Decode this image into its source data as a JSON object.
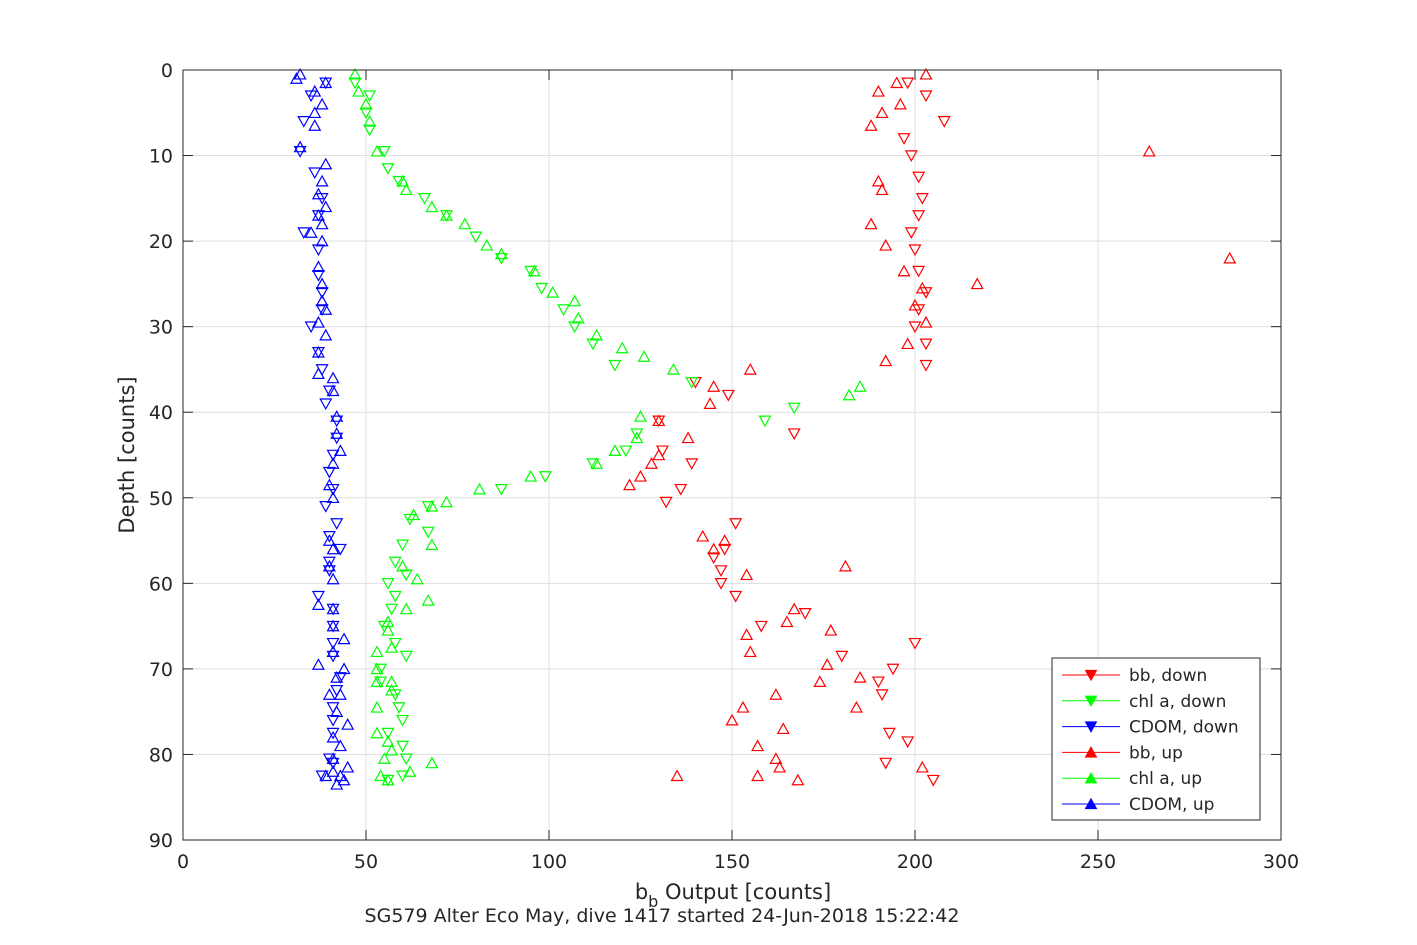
{
  "chart_data": {
    "type": "scatter",
    "xlabel_main": "b",
    "xlabel_sub": "b",
    "xlabel_rest": " Output [counts]",
    "ylabel": "Depth [counts]",
    "caption": "SG579 Alter Eco May, dive 1417 started 24-Jun-2018 15:22:42",
    "xlim": [
      0,
      300
    ],
    "ylim": [
      0,
      90
    ],
    "y_reversed": true,
    "grid": true,
    "xticks": [
      "0",
      "50",
      "100",
      "150",
      "200",
      "250",
      "300"
    ],
    "yticks": [
      "0",
      "10",
      "20",
      "30",
      "40",
      "50",
      "60",
      "70",
      "80",
      "90"
    ],
    "legend_position": "bottom-right",
    "series": [
      {
        "name": "bb, down",
        "color": "#ff0000",
        "marker": "triangle-down",
        "points": [
          [
            198,
            1.5
          ],
          [
            203,
            3
          ],
          [
            208,
            6
          ],
          [
            197,
            8
          ],
          [
            199,
            10
          ],
          [
            201,
            12.5
          ],
          [
            202,
            15
          ],
          [
            201,
            17
          ],
          [
            199,
            19
          ],
          [
            200,
            21
          ],
          [
            201,
            23.5
          ],
          [
            203,
            26
          ],
          [
            201,
            28
          ],
          [
            200,
            30
          ],
          [
            203,
            32
          ],
          [
            203,
            34.5
          ],
          [
            140,
            36.5
          ],
          [
            149,
            38
          ],
          [
            130,
            41
          ],
          [
            167,
            42.5
          ],
          [
            131,
            44.5
          ],
          [
            139,
            46
          ],
          [
            136,
            49
          ],
          [
            132,
            50.5
          ],
          [
            151,
            53
          ],
          [
            148,
            56
          ],
          [
            145,
            57
          ],
          [
            147,
            58.5
          ],
          [
            147,
            60
          ],
          [
            151,
            61.5
          ],
          [
            170,
            63.5
          ],
          [
            158,
            65
          ],
          [
            200,
            67
          ],
          [
            180,
            68.5
          ],
          [
            194,
            70
          ],
          [
            191,
            73
          ],
          [
            190,
            71.5
          ],
          [
            193,
            77.5
          ],
          [
            198,
            78.5
          ],
          [
            192,
            81
          ],
          [
            205,
            83
          ]
        ]
      },
      {
        "name": "chl a, down",
        "color": "#00ff00",
        "marker": "triangle-down",
        "points": [
          [
            47,
            1.5
          ],
          [
            51,
            3
          ],
          [
            50,
            5
          ],
          [
            51,
            7
          ],
          [
            55,
            9.5
          ],
          [
            56,
            11.5
          ],
          [
            59,
            13
          ],
          [
            66,
            15
          ],
          [
            72,
            17
          ],
          [
            80,
            19.5
          ],
          [
            87,
            22
          ],
          [
            95,
            23.5
          ],
          [
            98,
            25.5
          ],
          [
            104,
            28
          ],
          [
            107,
            30
          ],
          [
            112,
            32
          ],
          [
            118,
            34.5
          ],
          [
            139,
            36.5
          ],
          [
            167,
            39.5
          ],
          [
            159,
            41
          ],
          [
            124,
            42.5
          ],
          [
            121,
            44.5
          ],
          [
            112,
            46
          ],
          [
            99,
            47.5
          ],
          [
            87,
            49
          ],
          [
            67,
            51
          ],
          [
            62,
            52.5
          ],
          [
            67,
            54
          ],
          [
            60,
            55.5
          ],
          [
            58,
            57.5
          ],
          [
            61,
            59
          ],
          [
            56,
            60
          ],
          [
            58,
            61.5
          ],
          [
            57,
            63
          ],
          [
            55,
            65
          ],
          [
            58,
            67
          ],
          [
            61,
            68.5
          ],
          [
            54,
            70
          ],
          [
            54,
            71.5
          ],
          [
            58,
            73
          ],
          [
            59,
            74.5
          ],
          [
            60,
            76
          ],
          [
            56,
            77.5
          ],
          [
            60,
            79
          ],
          [
            61,
            80.5
          ],
          [
            60,
            82.5
          ],
          [
            56,
            83
          ]
        ]
      },
      {
        "name": "CDOM, down",
        "color": "#0000ff",
        "marker": "triangle-down",
        "points": [
          [
            39,
            1.5
          ],
          [
            35,
            3
          ],
          [
            33,
            6
          ],
          [
            32,
            9.5
          ],
          [
            36,
            12
          ],
          [
            38,
            15
          ],
          [
            37,
            17
          ],
          [
            33,
            19
          ],
          [
            37,
            21
          ],
          [
            37,
            24
          ],
          [
            38,
            26
          ],
          [
            38,
            28
          ],
          [
            35,
            30
          ],
          [
            37,
            33
          ],
          [
            38,
            35
          ],
          [
            40,
            37.5
          ],
          [
            39,
            39
          ],
          [
            42,
            41
          ],
          [
            42,
            43
          ],
          [
            41,
            45
          ],
          [
            40,
            47
          ],
          [
            41,
            49
          ],
          [
            39,
            51
          ],
          [
            42,
            53
          ],
          [
            40,
            54.5
          ],
          [
            43,
            56
          ],
          [
            40,
            57.5
          ],
          [
            40,
            58.5
          ],
          [
            37,
            61.5
          ],
          [
            41,
            63
          ],
          [
            41,
            65
          ],
          [
            41,
            67
          ],
          [
            41,
            68.5
          ],
          [
            43,
            71
          ],
          [
            42,
            72.5
          ],
          [
            41,
            74.5
          ],
          [
            41,
            76
          ],
          [
            41,
            77.5
          ],
          [
            40,
            80.5
          ],
          [
            41,
            81
          ],
          [
            38,
            82.5
          ]
        ]
      },
      {
        "name": "bb, up",
        "color": "#ff0000",
        "marker": "triangle-up",
        "points": [
          [
            203,
            0.5
          ],
          [
            195,
            1.5
          ],
          [
            190,
            2.5
          ],
          [
            196,
            4
          ],
          [
            191,
            5
          ],
          [
            188,
            6.5
          ],
          [
            190,
            13
          ],
          [
            191,
            14
          ],
          [
            188,
            18
          ],
          [
            192,
            20.5
          ],
          [
            197,
            23.5
          ],
          [
            202,
            25.5
          ],
          [
            200,
            27.5
          ],
          [
            203,
            29.5
          ],
          [
            198,
            32
          ],
          [
            192,
            34
          ],
          [
            264,
            9.5
          ],
          [
            286,
            22
          ],
          [
            217,
            25
          ],
          [
            155,
            35
          ],
          [
            145,
            37
          ],
          [
            144,
            39
          ],
          [
            130,
            41
          ],
          [
            138,
            43
          ],
          [
            128,
            46
          ],
          [
            125,
            47.5
          ],
          [
            122,
            48.5
          ],
          [
            130,
            45
          ],
          [
            142,
            54.5
          ],
          [
            148,
            55
          ],
          [
            145,
            56
          ],
          [
            154,
            59
          ],
          [
            167,
            63
          ],
          [
            154,
            66
          ],
          [
            155,
            68
          ],
          [
            181,
            58
          ],
          [
            165,
            64.5
          ],
          [
            177,
            65.5
          ],
          [
            176,
            69.5
          ],
          [
            185,
            71
          ],
          [
            174,
            71.5
          ],
          [
            162,
            73
          ],
          [
            153,
            74.5
          ],
          [
            150,
            76
          ],
          [
            164,
            77
          ],
          [
            184,
            74.5
          ],
          [
            157,
            79
          ],
          [
            162,
            80.5
          ],
          [
            163,
            81.5
          ],
          [
            135,
            82.5
          ],
          [
            157,
            82.5
          ],
          [
            168,
            83
          ],
          [
            202,
            81.5
          ]
        ]
      },
      {
        "name": "chl a, up",
        "color": "#00ff00",
        "marker": "triangle-up",
        "points": [
          [
            47,
            0.5
          ],
          [
            48,
            2.5
          ],
          [
            50,
            4
          ],
          [
            51,
            6
          ],
          [
            53,
            9.5
          ],
          [
            60,
            13
          ],
          [
            61,
            14
          ],
          [
            68,
            16
          ],
          [
            72,
            17
          ],
          [
            77,
            18
          ],
          [
            83,
            20.5
          ],
          [
            87,
            21.5
          ],
          [
            96,
            23.5
          ],
          [
            101,
            26
          ],
          [
            107,
            27
          ],
          [
            108,
            29
          ],
          [
            113,
            31
          ],
          [
            120,
            32.5
          ],
          [
            126,
            33.5
          ],
          [
            134,
            35
          ],
          [
            185,
            37
          ],
          [
            182,
            38
          ],
          [
            125,
            40.5
          ],
          [
            124,
            43
          ],
          [
            118,
            44.5
          ],
          [
            113,
            46
          ],
          [
            95,
            47.5
          ],
          [
            81,
            49
          ],
          [
            72,
            50.5
          ],
          [
            68,
            51
          ],
          [
            63,
            52
          ],
          [
            68,
            55.5
          ],
          [
            60,
            58
          ],
          [
            64,
            59.5
          ],
          [
            67,
            62
          ],
          [
            61,
            63
          ],
          [
            56,
            64.5
          ],
          [
            56,
            65.5
          ],
          [
            57,
            67.5
          ],
          [
            53,
            68
          ],
          [
            53,
            70
          ],
          [
            53,
            71.5
          ],
          [
            57,
            71.5
          ],
          [
            57,
            72.5
          ],
          [
            53,
            74.5
          ],
          [
            53,
            77.5
          ],
          [
            56,
            78.5
          ],
          [
            57,
            79.5
          ],
          [
            55,
            80.5
          ],
          [
            68,
            81
          ],
          [
            62,
            82
          ],
          [
            54,
            82.5
          ],
          [
            56,
            83
          ]
        ]
      },
      {
        "name": "CDOM, up",
        "color": "#0000ff",
        "marker": "triangle-up",
        "points": [
          [
            32,
            0.5
          ],
          [
            31,
            1
          ],
          [
            39,
            1.5
          ],
          [
            36,
            2.5
          ],
          [
            38,
            4
          ],
          [
            36,
            5
          ],
          [
            36,
            6.5
          ],
          [
            32,
            9
          ],
          [
            39,
            11
          ],
          [
            38,
            13
          ],
          [
            37,
            14.5
          ],
          [
            39,
            16
          ],
          [
            37,
            17
          ],
          [
            38,
            18
          ],
          [
            35,
            19
          ],
          [
            38,
            20
          ],
          [
            37,
            23
          ],
          [
            38,
            25
          ],
          [
            38,
            27
          ],
          [
            39,
            28
          ],
          [
            37,
            29.5
          ],
          [
            39,
            31
          ],
          [
            37,
            33
          ],
          [
            37,
            35.5
          ],
          [
            41,
            36
          ],
          [
            41,
            37.5
          ],
          [
            42,
            40.5
          ],
          [
            42,
            42.5
          ],
          [
            43,
            44.5
          ],
          [
            41,
            46
          ],
          [
            40,
            48.5
          ],
          [
            41,
            50
          ],
          [
            40,
            55
          ],
          [
            41,
            56
          ],
          [
            40,
            58
          ],
          [
            41,
            59.5
          ],
          [
            37,
            62.5
          ],
          [
            41,
            63
          ],
          [
            41,
            65
          ],
          [
            44,
            66.5
          ],
          [
            41,
            68
          ],
          [
            37,
            69.5
          ],
          [
            44,
            70
          ],
          [
            42,
            71
          ],
          [
            43,
            73
          ],
          [
            40,
            73
          ],
          [
            42,
            75
          ],
          [
            45,
            76.5
          ],
          [
            41,
            78
          ],
          [
            43,
            79
          ],
          [
            41,
            80.5
          ],
          [
            41,
            82
          ],
          [
            43,
            82.5
          ],
          [
            44,
            83
          ],
          [
            42,
            83.5
          ],
          [
            45,
            81.5
          ],
          [
            39,
            82.5
          ]
        ]
      }
    ]
  }
}
